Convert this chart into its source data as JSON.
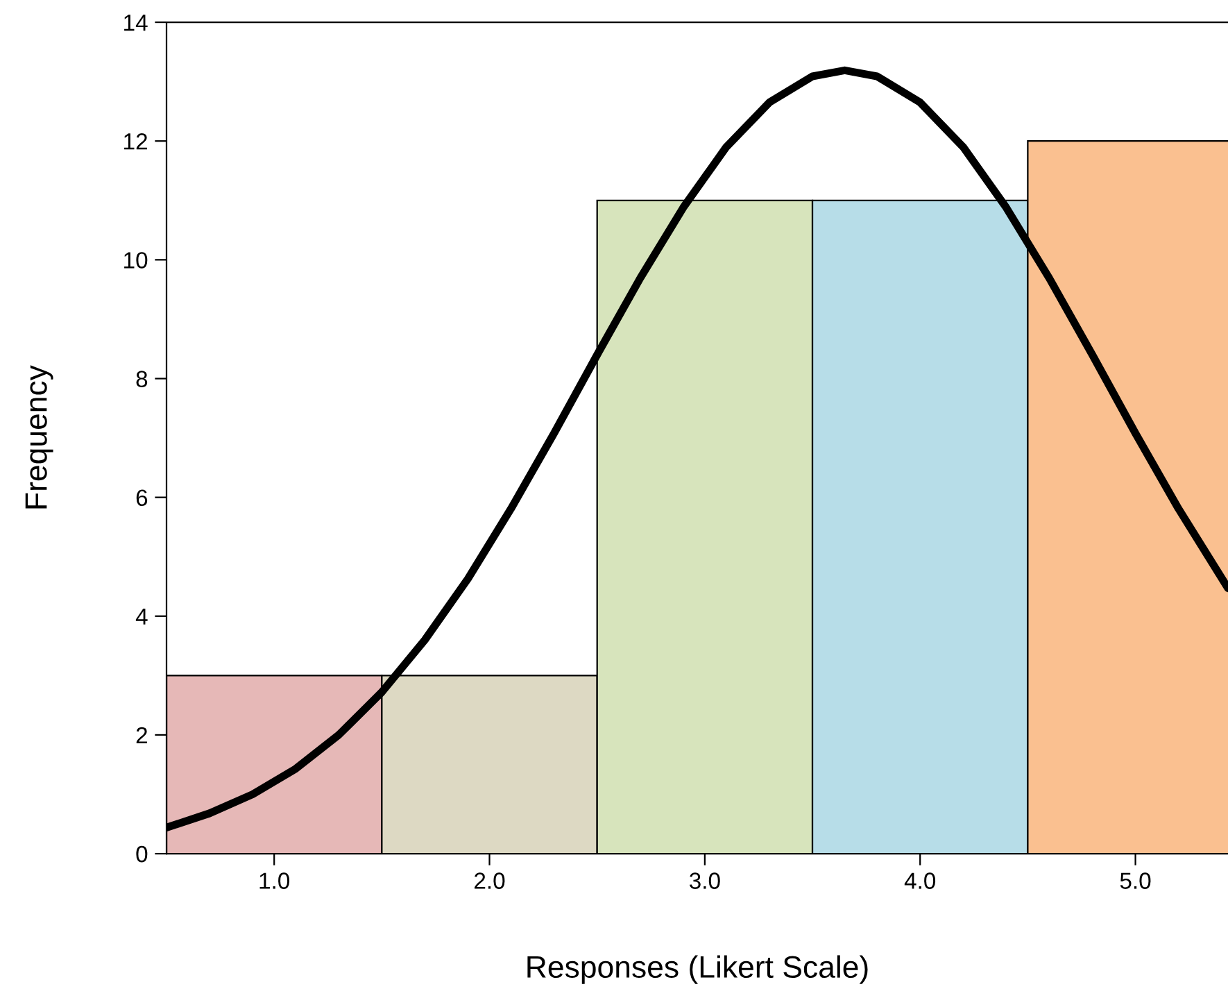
{
  "chart_data": {
    "type": "histogram",
    "xlabel": "Responses (Likert Scale)",
    "ylabel": "Frequency",
    "bins": [
      0.5,
      1.5,
      2.5,
      3.5,
      4.5,
      5.5
    ],
    "values": [
      3,
      3,
      11,
      11,
      12
    ],
    "colors": [
      "#e6b8b7",
      "#ddd9c3",
      "#d7e4bc",
      "#b7dde8",
      "#fac090"
    ],
    "series": [
      {
        "type": "line",
        "color": "#000000",
        "x": [
          0.5,
          0.7,
          0.9,
          1.1,
          1.3,
          1.5,
          1.7,
          1.9,
          2.1,
          2.3,
          2.5,
          2.7,
          2.9,
          3.1,
          3.3,
          3.5,
          3.65,
          3.8,
          4.0,
          4.2,
          4.4,
          4.6,
          4.8,
          5.0,
          5.2,
          5.43
        ],
        "values": [
          0.44,
          0.68,
          1.0,
          1.43,
          2.0,
          2.72,
          3.6,
          4.63,
          5.81,
          7.08,
          8.4,
          9.69,
          10.88,
          11.9,
          12.65,
          13.09,
          13.19,
          13.09,
          12.65,
          11.9,
          10.88,
          9.69,
          8.4,
          7.08,
          5.81,
          4.47
        ]
      }
    ],
    "xlim": [
      0.5,
      5.43
    ],
    "ylim": [
      0,
      14
    ],
    "xticks": [
      {
        "value": 1,
        "label": "1.0"
      },
      {
        "value": 2,
        "label": "2.0"
      },
      {
        "value": 3,
        "label": "3.0"
      },
      {
        "value": 4,
        "label": "4.0"
      },
      {
        "value": 5,
        "label": "5.0"
      }
    ],
    "yticks": [
      0,
      2,
      4,
      6,
      8,
      10,
      12,
      14
    ],
    "grid": false,
    "legend": false
  }
}
